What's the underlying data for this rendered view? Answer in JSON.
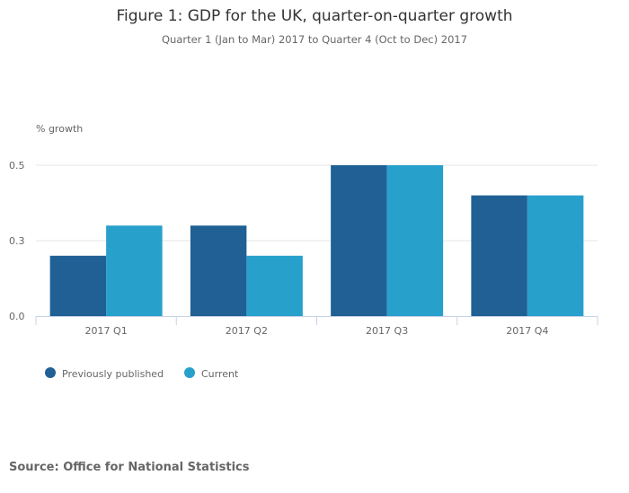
{
  "chart_data": {
    "type": "bar",
    "title": "Figure 1: GDP for the UK, quarter-on-quarter growth",
    "subtitle": "Quarter 1 (Jan to Mar) 2017 to Quarter 4 (Oct to Dec) 2017",
    "ylabel": "% growth",
    "xlabel": "",
    "categories": [
      "2017 Q1",
      "2017 Q2",
      "2017 Q3",
      "2017 Q4"
    ],
    "series": [
      {
        "name": "Previously published",
        "values": [
          0.2,
          0.3,
          0.5,
          0.4
        ],
        "color": "#206095"
      },
      {
        "name": "Current",
        "values": [
          0.3,
          0.2,
          0.5,
          0.4
        ],
        "color": "#27a0cc"
      }
    ],
    "yticks": [
      {
        "value": 0,
        "label": "0.0"
      },
      {
        "value": 0.25,
        "label": "0.3"
      },
      {
        "value": 0.5,
        "label": "0.5"
      }
    ],
    "ylim": [
      0,
      0.5
    ],
    "grid": true,
    "legend": "bottom-left",
    "source": "Source: Office for National Statistics"
  }
}
